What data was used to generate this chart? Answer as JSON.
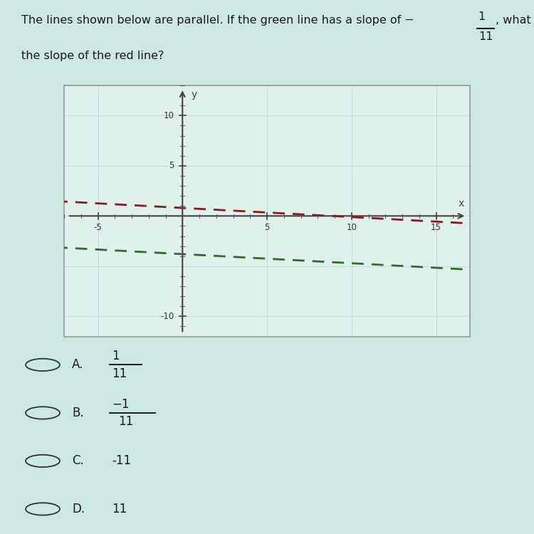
{
  "bg_color": "#cce8e2",
  "plot_bg_color": "#dff0ed",
  "red_line_color": "#8b1a1a",
  "green_line_color": "#2d6e2d",
  "slope": -0.0909,
  "red_y_intercept": 0.8,
  "green_y_intercept": -3.8,
  "x_min": -7,
  "x_max": 17,
  "y_min": -12,
  "y_max": 13,
  "choices": [
    {
      "label": "A.",
      "num": "1",
      "den": "11",
      "neg": false,
      "is_frac": true
    },
    {
      "label": "B.",
      "num": "1",
      "den": "11",
      "neg": true,
      "is_frac": true
    },
    {
      "label": "C.",
      "val": "-11",
      "is_frac": false
    },
    {
      "label": "D.",
      "val": "11",
      "is_frac": false
    }
  ]
}
